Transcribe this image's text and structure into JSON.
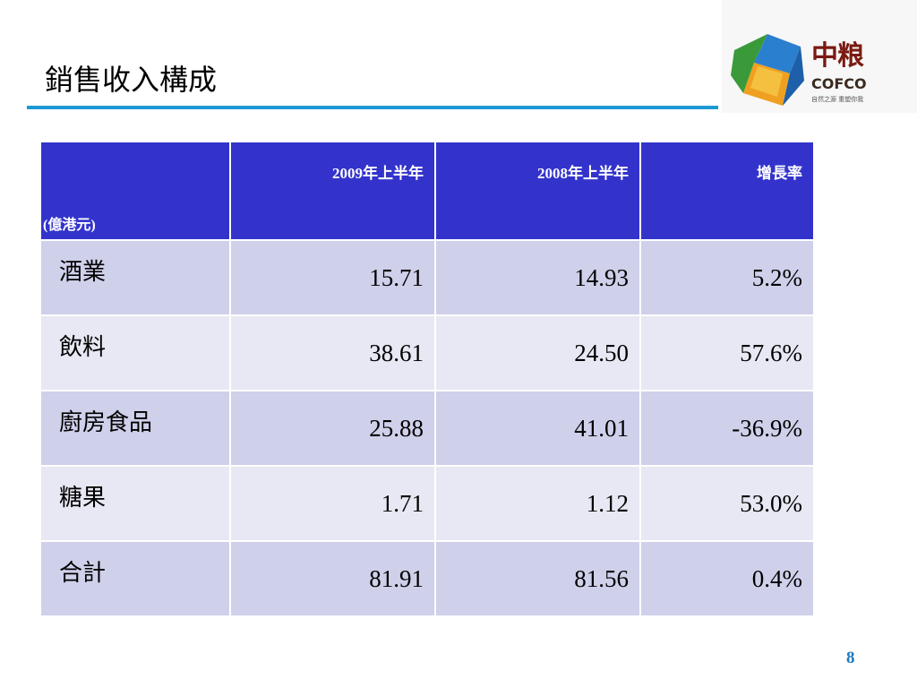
{
  "header": {
    "title": "銷售收入構成",
    "logo": {
      "mark": "中粮",
      "brand": "COFCO",
      "slogan": "自然之源 重塑你我"
    }
  },
  "table": {
    "unit": "(億港元)",
    "columns": [
      "2009年上半年",
      "2008年上半年",
      "增長率"
    ],
    "rows": [
      [
        "酒業",
        "15.71",
        "14.93",
        "5.2%"
      ],
      [
        "飲料",
        "38.61",
        "24.50",
        "57.6%"
      ],
      [
        "廚房食品",
        "25.88",
        "41.01",
        "-36.9%"
      ],
      [
        "糖果",
        "1.71",
        "1.12",
        "53.0%"
      ],
      [
        "合計",
        "81.91",
        "81.56",
        "0.4%"
      ]
    ]
  },
  "footer": {
    "page": "8"
  }
}
